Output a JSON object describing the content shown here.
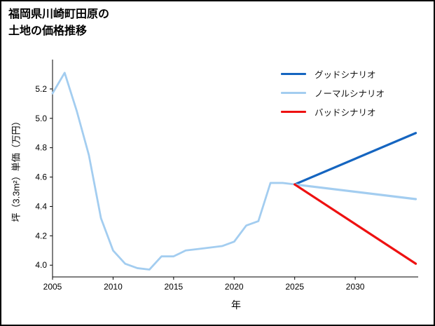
{
  "title": {
    "line1": "福岡県川崎町田原の",
    "line2": "土地の価格推移"
  },
  "chart_data": {
    "type": "line",
    "title": "福岡県川崎町田原の土地の価格推移",
    "xlabel": "年",
    "ylabel": "坪（3.3m²）単価（万円）",
    "xlim": [
      2005,
      2035.2
    ],
    "ylim": [
      3.92,
      5.4
    ],
    "grid": false,
    "legend_position": "upper right",
    "xticks": [
      2005,
      2010,
      2015,
      2020,
      2025,
      2030
    ],
    "ytick_labels": [
      "4.0",
      "4.2",
      "4.4",
      "4.6",
      "4.8",
      "5.0",
      "5.2"
    ],
    "history": {
      "color": "#a3cdf0",
      "x": [
        2005,
        2006,
        2007,
        2008,
        2009,
        2010,
        2011,
        2012,
        2013,
        2014,
        2015,
        2016,
        2017,
        2018,
        2019,
        2020,
        2021,
        2022,
        2023,
        2024,
        2025
      ],
      "y": [
        5.17,
        5.31,
        5.05,
        4.75,
        4.32,
        4.1,
        4.01,
        3.98,
        3.97,
        4.06,
        4.06,
        4.1,
        4.11,
        4.12,
        4.13,
        4.16,
        4.27,
        4.3,
        4.56,
        4.56,
        4.55
      ]
    },
    "series": [
      {
        "name": "グッドシナリオ",
        "color": "#1565c0",
        "x": [
          2025,
          2035
        ],
        "y": [
          4.55,
          4.9
        ]
      },
      {
        "name": "ノーマルシナリオ",
        "color": "#a3cdf0",
        "x": [
          2025,
          2035
        ],
        "y": [
          4.55,
          4.45
        ]
      },
      {
        "name": "バッドシナリオ",
        "color": "#ee1111",
        "x": [
          2025,
          2035
        ],
        "y": [
          4.55,
          4.01
        ]
      }
    ]
  }
}
